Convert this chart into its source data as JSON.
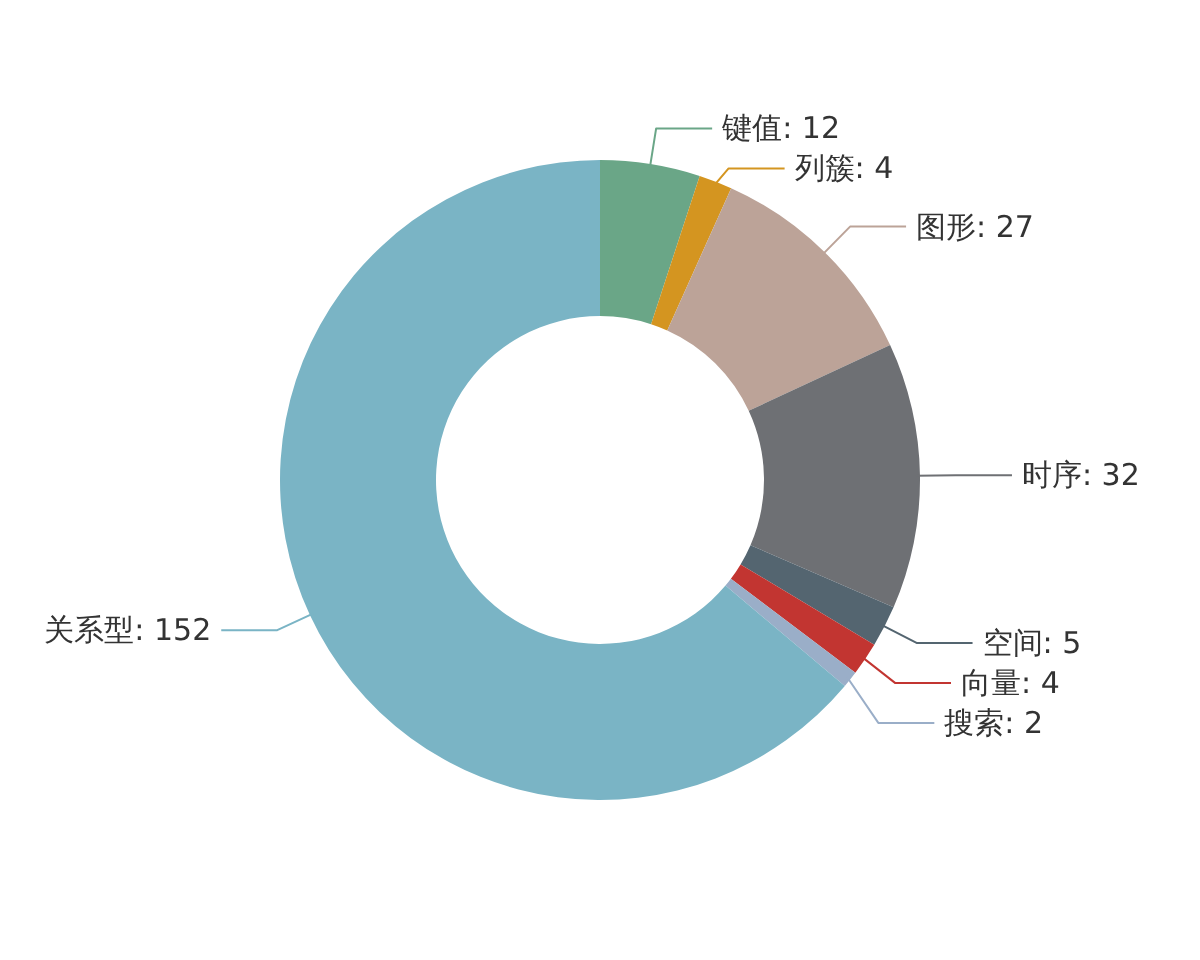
{
  "chart_data": {
    "type": "donut",
    "categories": [
      "键值: 12",
      "列簇: 4",
      "图形: 27",
      "时序: 32",
      "空间: 5",
      "向量: 4",
      "搜索: 2",
      "关系型: 152"
    ],
    "values": [
      12,
      4,
      27,
      32,
      5,
      4,
      2,
      152
    ],
    "colors": [
      "#6aa687",
      "#d49520",
      "#bca398",
      "#6e7074",
      "#546570",
      "#c23531",
      "#9aaec8",
      "#7ab4c5"
    ]
  }
}
